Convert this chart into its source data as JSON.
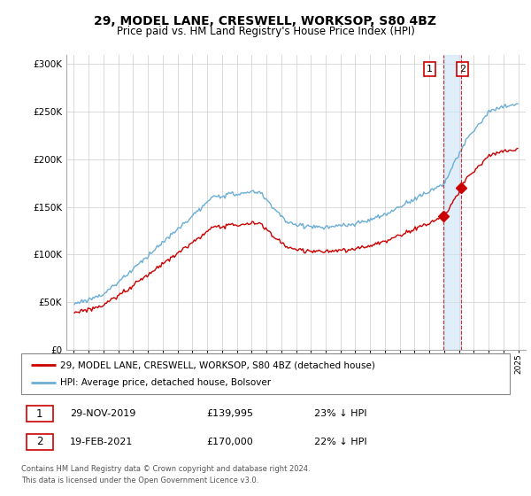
{
  "title": "29, MODEL LANE, CRESWELL, WORKSOP, S80 4BZ",
  "subtitle": "Price paid vs. HM Land Registry's House Price Index (HPI)",
  "legend_entry1": "29, MODEL LANE, CRESWELL, WORKSOP, S80 4BZ (detached house)",
  "legend_entry2": "HPI: Average price, detached house, Bolsover",
  "annotation1_date": "29-NOV-2019",
  "annotation1_price": "£139,995",
  "annotation1_hpi": "23% ↓ HPI",
  "annotation2_date": "19-FEB-2021",
  "annotation2_price": "£170,000",
  "annotation2_hpi": "22% ↓ HPI",
  "footer": "Contains HM Land Registry data © Crown copyright and database right 2024.\nThis data is licensed under the Open Government Licence v3.0.",
  "hpi_color": "#6baed6",
  "price_color": "#cc0000",
  "marker1_x": 2019.92,
  "marker2_x": 2021.13,
  "marker1_y": 139995,
  "marker2_y": 170000,
  "vline1_x": 2019.92,
  "vline2_x": 2021.13,
  "ylim": [
    0,
    310000
  ],
  "xlim": [
    1994.5,
    2025.5
  ],
  "background_color": "#ffffff",
  "grid_color": "#cccccc"
}
